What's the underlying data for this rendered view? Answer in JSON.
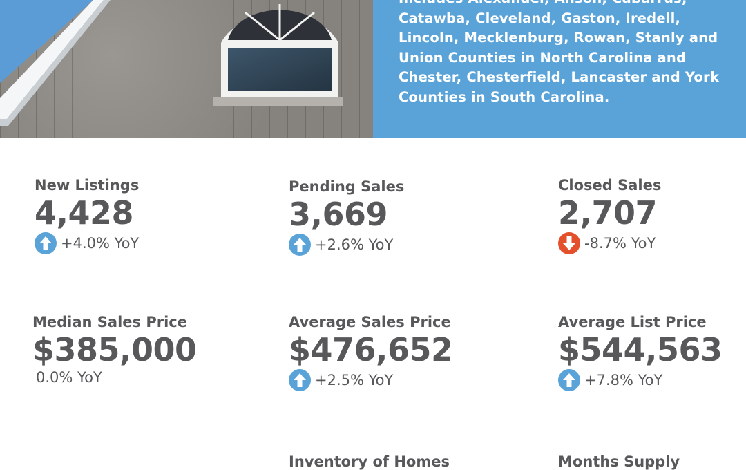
{
  "panel": {
    "text": "Includes Alexander, Anson, Cabarrus, Catawba, Cleveland, Gaston, Iredell, Lincoln, Mecklenburg, Rowan, Stanly and Union Counties in North Carolina and Chester, Chesterfield, Lancaster and York Counties in South Carolina."
  },
  "colors": {
    "accent": "#5aa3d9",
    "down": "#e4502b",
    "text": "#58585a"
  },
  "stats": [
    {
      "label": "New Listings",
      "value": "4,428",
      "change": "+4.0% YoY",
      "trend": "up",
      "trend_icon": "arrow-up-icon"
    },
    {
      "label": "Pending Sales",
      "value": "3,669",
      "change": "+2.6% YoY",
      "trend": "up",
      "trend_icon": "arrow-up-icon"
    },
    {
      "label": "Closed Sales",
      "value": "2,707",
      "change": "-8.7% YoY",
      "trend": "down",
      "trend_icon": "arrow-down-icon"
    },
    {
      "label": "Median Sales Price",
      "value": "$385,000",
      "change": "0.0% YoY",
      "trend": "none"
    },
    {
      "label": "Average Sales Price",
      "value": "$476,652",
      "change": "+2.5% YoY",
      "trend": "up",
      "trend_icon": "arrow-up-icon"
    },
    {
      "label": "Average List Price",
      "value": "$544,563",
      "change": "+7.8% YoY",
      "trend": "up",
      "trend_icon": "arrow-up-icon"
    },
    {
      "label": "Inventory of Homes",
      "value": "",
      "change": ""
    },
    {
      "label": "Months Supply",
      "value": "",
      "change": ""
    }
  ]
}
